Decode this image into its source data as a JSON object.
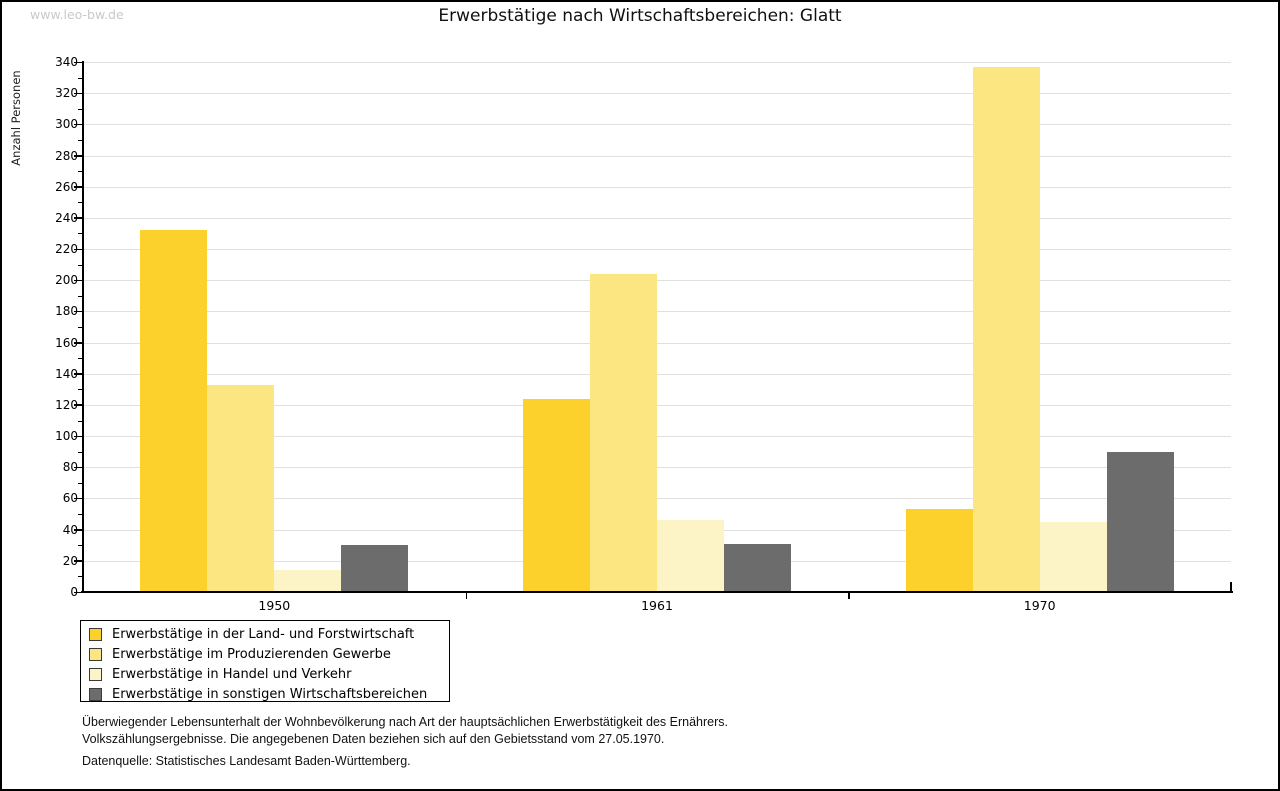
{
  "watermark": "www.leo-bw.de",
  "title": "Erwerbstätige nach Wirtschaftsbereichen: Glatt",
  "chart_data": {
    "type": "bar",
    "title": "Erwerbstätige nach Wirtschaftsbereichen: Glatt",
    "xlabel": "",
    "ylabel": "Anzahl Personen",
    "categories": [
      "1950",
      "1961",
      "1970"
    ],
    "series": [
      {
        "name": "Erwerbstätige in der Land- und Forstwirtschaft",
        "color": "#FCD12C",
        "values": [
          232,
          124,
          53
        ]
      },
      {
        "name": "Erwerbstätige im Produzierenden Gewerbe",
        "color": "#FCE682",
        "values": [
          133,
          204,
          337
        ]
      },
      {
        "name": "Erwerbstätige in Handel und Verkehr",
        "color": "#FCF3C6",
        "values": [
          14,
          46,
          45
        ]
      },
      {
        "name": "Erwerbstätige in sonstigen Wirtschaftsbereichen",
        "color": "#6C6C6C",
        "values": [
          30,
          31,
          90
        ]
      }
    ],
    "ylim": [
      0,
      340
    ],
    "ytick_step": 20,
    "ytick_minor_step": 10,
    "grid": true,
    "gridline_color": "#e0e0e0",
    "legend_position": "bottom-left"
  },
  "footnotes": [
    "Überwiegender Lebensunterhalt der Wohnbevölkerung nach Art der hauptsächlichen Erwerbstätigkeit des Ernährers.",
    "Volkszählungsergebnisse. Die angegebenen Daten beziehen sich auf den Gebietsstand vom 27.05.1970."
  ],
  "source": "Datenquelle: Statistisches Landesamt Baden-Württemberg."
}
